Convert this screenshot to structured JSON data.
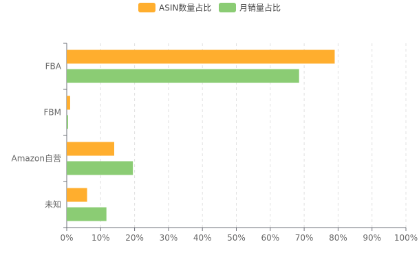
{
  "chart_data": {
    "type": "bar",
    "orientation": "horizontal",
    "categories": [
      "FBA",
      "FBM",
      "Amazon自营",
      "未知"
    ],
    "series": [
      {
        "name": "ASIN数量占比",
        "color": "#FFAE2E",
        "values": [
          79,
          1,
          14,
          6
        ]
      },
      {
        "name": "月销量占比",
        "color": "#8BCC74",
        "values": [
          68.5,
          0.4,
          19.5,
          11.7
        ]
      }
    ],
    "xlim": [
      0,
      100
    ],
    "xticks": [
      0,
      10,
      20,
      30,
      40,
      50,
      60,
      70,
      80,
      90,
      100
    ],
    "xtick_suffix": "%",
    "legend_position": "top-center",
    "grid": "vertical-dashed",
    "title": "",
    "xlabel": "",
    "ylabel": ""
  }
}
